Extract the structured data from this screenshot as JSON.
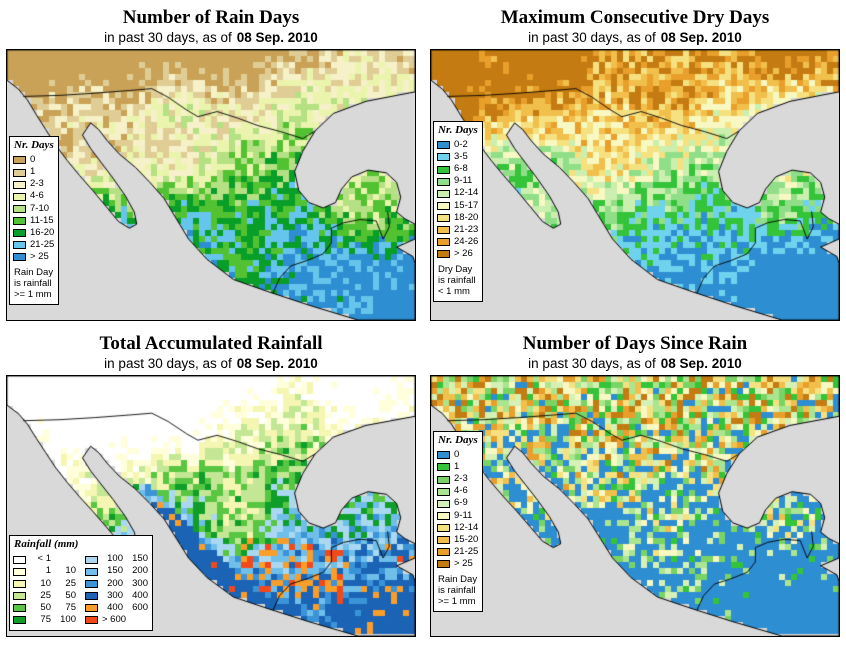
{
  "page": {
    "background": "#ffffff",
    "ocean_color": "#d9d9d9",
    "frame_color": "#000000"
  },
  "panels": [
    {
      "title": "Number of Rain Days",
      "subtitle_prefix": "in past 30 days, as of",
      "subtitle_date": "08 Sep. 2010",
      "map_style": "rain",
      "legend": {
        "title": "Nr. Days",
        "items": [
          {
            "label": "0",
            "color": "#c9a257"
          },
          {
            "label": "1",
            "color": "#e0cd96"
          },
          {
            "label": "2-3",
            "color": "#f6f1c8"
          },
          {
            "label": "4-6",
            "color": "#eaf4ad"
          },
          {
            "label": "7-10",
            "color": "#b5e084"
          },
          {
            "label": "11-15",
            "color": "#53c232"
          },
          {
            "label": "16-20",
            "color": "#089e28"
          },
          {
            "label": "21-25",
            "color": "#66c5ec"
          },
          {
            "label": "> 25",
            "color": "#2e8ed2"
          }
        ],
        "note_lines": [
          "Rain Day",
          "is rainfall",
          ">= 1 mm"
        ]
      }
    },
    {
      "title": "Maximum Consecutive Dry Days",
      "subtitle_prefix": "in past 30 days, as of",
      "subtitle_date": "08 Sep. 2010",
      "map_style": "dry",
      "legend": {
        "title": "Nr. Days",
        "items": [
          {
            "label": "0-2",
            "color": "#2e8ed2"
          },
          {
            "label": "3-5",
            "color": "#6fd3ee"
          },
          {
            "label": "6-8",
            "color": "#35c33a"
          },
          {
            "label": "9-11",
            "color": "#90df88"
          },
          {
            "label": "12-14",
            "color": "#cbefae"
          },
          {
            "label": "15-17",
            "color": "#f8f8c2"
          },
          {
            "label": "18-20",
            "color": "#f6e180"
          },
          {
            "label": "21-23",
            "color": "#f1bf4b"
          },
          {
            "label": "24-26",
            "color": "#e89f2b"
          },
          {
            "label": "> 26",
            "color": "#c47c12"
          }
        ],
        "note_lines": [
          "Dry Day",
          "is rainfall",
          "< 1 mm"
        ]
      }
    },
    {
      "title": "Total Accumulated Rainfall",
      "subtitle_prefix": "in past 30 days, as of",
      "subtitle_date": "08 Sep. 2010",
      "map_style": "rainfall",
      "legend": {
        "title": "Rainfall (mm)",
        "columns": [
          {
            "items": [
              {
                "v1": "< 1",
                "color": "#ffffff"
              },
              {
                "v1": "1",
                "v2": "10",
                "color": "#ffffdc"
              },
              {
                "v1": "10",
                "v2": "25",
                "color": "#f4f6b2"
              },
              {
                "v1": "25",
                "v2": "50",
                "color": "#c3e794"
              },
              {
                "v1": "50",
                "v2": "75",
                "color": "#58c643"
              },
              {
                "v1": "75",
                "v2": "100",
                "color": "#0f9e2a"
              }
            ]
          },
          {
            "items": [
              {
                "v1": "100",
                "v2": "150",
                "color": "#a9d8f0"
              },
              {
                "v1": "150",
                "v2": "200",
                "color": "#6fbfea"
              },
              {
                "v1": "200",
                "v2": "300",
                "color": "#3b94d8"
              },
              {
                "v1": "300",
                "v2": "400",
                "color": "#1a63b5"
              },
              {
                "v1": "400",
                "v2": "600",
                "color": "#f99d2b"
              },
              {
                "v1": "> 600",
                "color": "#f1491a"
              }
            ]
          }
        ]
      }
    },
    {
      "title": "Number of Days Since Rain",
      "subtitle_prefix": "in past 30 days, as of",
      "subtitle_date": "08 Sep. 2010",
      "map_style": "since",
      "legend": {
        "title": "Nr. Days",
        "items": [
          {
            "label": "0",
            "color": "#2e8ed2"
          },
          {
            "label": "1",
            "color": "#35c33a"
          },
          {
            "label": "2-3",
            "color": "#79d465"
          },
          {
            "label": "4-6",
            "color": "#abe58f"
          },
          {
            "label": "6-9",
            "color": "#d6f1b5"
          },
          {
            "label": "9-11",
            "color": "#f8f8c2"
          },
          {
            "label": "12-14",
            "color": "#f6e180"
          },
          {
            "label": "15-20",
            "color": "#f1bf4b"
          },
          {
            "label": "21-25",
            "color": "#e89f2b"
          },
          {
            "label": "> 25",
            "color": "#c47c12"
          }
        ],
        "note_lines": [
          "Rain Day",
          "is rainfall",
          ">= 1 mm"
        ]
      }
    }
  ]
}
